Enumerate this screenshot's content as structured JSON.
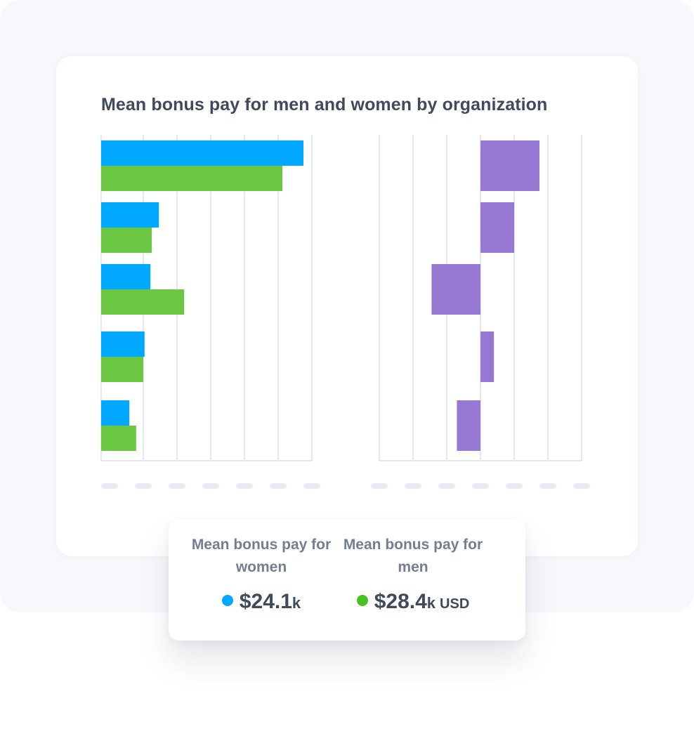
{
  "title": "Mean bonus pay for men and women by organization",
  "colors": {
    "women": "#00a8ff",
    "men": "#6cc744",
    "difference": "#9678d3",
    "grid": "#e3e8ef",
    "placeholder": "#e8ecf2"
  },
  "chart_data": [
    {
      "type": "bar",
      "orientation": "horizontal",
      "categories": [
        "",
        "",
        "",
        "",
        ""
      ],
      "series": [
        {
          "values": [
            48,
            13.7,
            11.7,
            10.3,
            6.7
          ]
        },
        {
          "values": [
            43,
            12,
            19.7,
            10,
            8.3
          ]
        }
      ],
      "xlim": [
        0,
        50
      ],
      "grid": true
    },
    {
      "type": "bar",
      "orientation": "horizontal",
      "categories": [
        "",
        "",
        "",
        "",
        ""
      ],
      "series": [
        {
          "values": [
            3.5,
            2,
            -2.9,
            0.8,
            -1.4
          ]
        }
      ],
      "xlim": [
        -6,
        6
      ],
      "grid": true
    }
  ],
  "summary": {
    "women": {
      "label": "Mean bonus pay for women",
      "value": "$24.1",
      "unit": "k",
      "currency": ""
    },
    "men": {
      "label": "Mean bonus pay for men",
      "value": "$28.4",
      "unit": "k",
      "currency": "USD"
    }
  }
}
